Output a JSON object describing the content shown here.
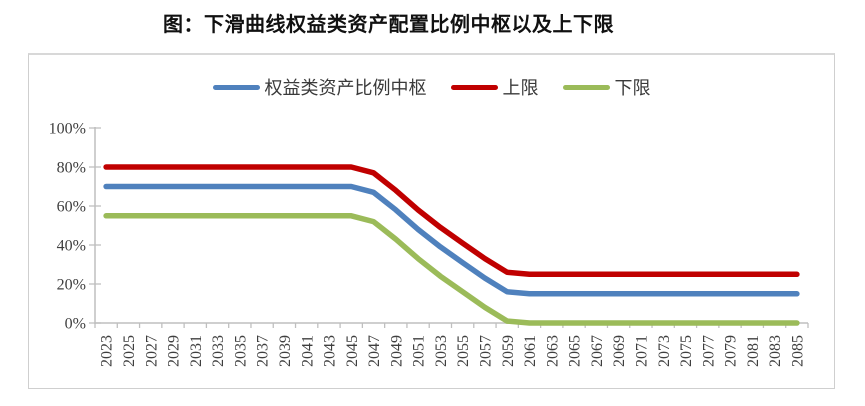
{
  "title": "图：下滑曲线权益类资产配置比例中枢以及上下限",
  "chart_data": {
    "type": "line",
    "title": "图：下滑曲线权益类资产配置比例中枢以及上下限",
    "xlabel": "",
    "ylabel": "",
    "ylim": [
      0,
      100
    ],
    "grid": "off",
    "legend_position": "top-center",
    "x_label_rotation": -90,
    "axis_color": "#bfbfbf",
    "label_color": "#3f3f3f",
    "x": [
      "2023",
      "2025",
      "2027",
      "2029",
      "2031",
      "2033",
      "2035",
      "2037",
      "2039",
      "2041",
      "2043",
      "2045",
      "2047",
      "2049",
      "2051",
      "2053",
      "2055",
      "2057",
      "2059",
      "2061",
      "2063",
      "2065",
      "2067",
      "2069",
      "2071",
      "2073",
      "2075",
      "2077",
      "2079",
      "2081",
      "2083",
      "2085"
    ],
    "y_ticks": [
      {
        "value": 0,
        "label": "0%"
      },
      {
        "value": 20,
        "label": "20%"
      },
      {
        "value": 40,
        "label": "40%"
      },
      {
        "value": 60,
        "label": "60%"
      },
      {
        "value": 80,
        "label": "80%"
      },
      {
        "value": 100,
        "label": "100%"
      }
    ],
    "series": [
      {
        "name": "权益类资产比例中枢",
        "color": "#4f81bd",
        "values": [
          70,
          70,
          70,
          70,
          70,
          70,
          70,
          70,
          70,
          70,
          70,
          70,
          67,
          58,
          48,
          39,
          31,
          23,
          16,
          15,
          15,
          15,
          15,
          15,
          15,
          15,
          15,
          15,
          15,
          15,
          15,
          15
        ]
      },
      {
        "name": "上限",
        "color": "#c00000",
        "values": [
          80,
          80,
          80,
          80,
          80,
          80,
          80,
          80,
          80,
          80,
          80,
          80,
          77,
          68,
          58,
          49,
          41,
          33,
          26,
          25,
          25,
          25,
          25,
          25,
          25,
          25,
          25,
          25,
          25,
          25,
          25,
          25
        ]
      },
      {
        "name": "下限",
        "color": "#9bbb59",
        "values": [
          55,
          55,
          55,
          55,
          55,
          55,
          55,
          55,
          55,
          55,
          55,
          55,
          52,
          43,
          33,
          24,
          16,
          8,
          1,
          0,
          0,
          0,
          0,
          0,
          0,
          0,
          0,
          0,
          0,
          0,
          0,
          0
        ]
      }
    ]
  }
}
